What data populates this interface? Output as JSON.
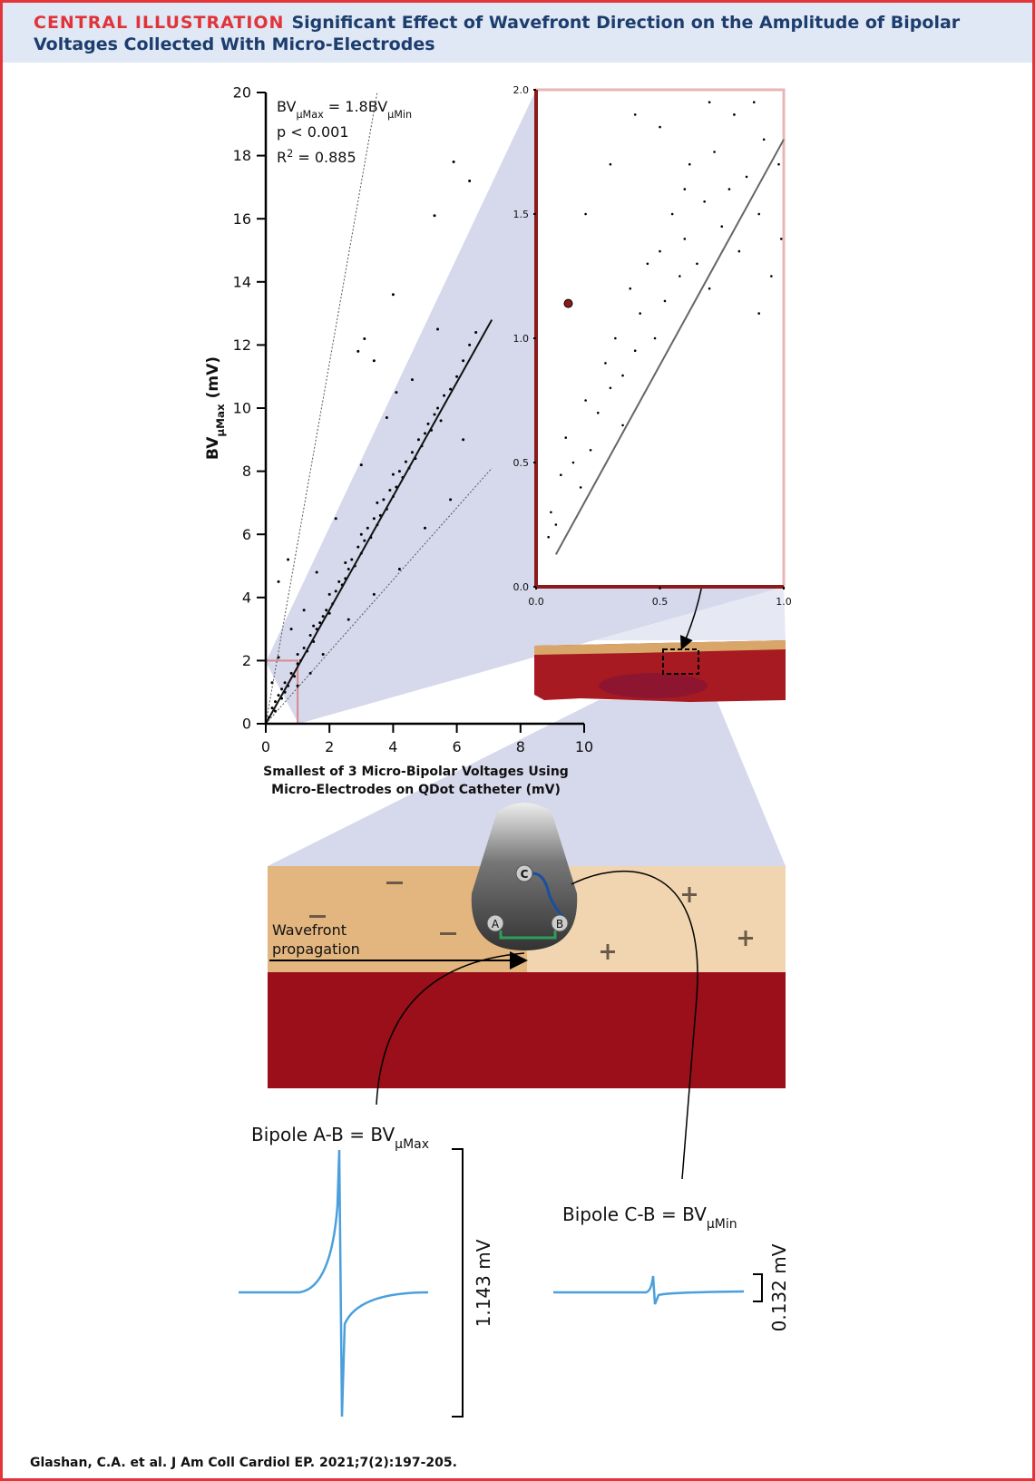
{
  "header": {
    "label": "CENTRAL ILLUSTRATION",
    "title": "Significant Effect of Wavefront Direction on the Amplitude of Bipolar Voltages Collected With Micro-Electrodes"
  },
  "chart_data": [
    {
      "type": "scatter",
      "ylabel": [
        {
          "text": "BV"
        },
        {
          "text": "μMax",
          "script": "sub"
        },
        {
          "text": " (mV)"
        }
      ],
      "xlabel": [
        "Smallest of 3 Micro-Bipolar Voltages Using",
        "Micro-Electrodes on QDot Catheter (mV)"
      ],
      "annotations": [
        [
          {
            "text": "BV"
          },
          {
            "text": "μMax",
            "script": "sub"
          },
          {
            "text": " = 1.8BV"
          },
          {
            "text": "μMin",
            "script": "sub"
          }
        ],
        [
          {
            "text": "p < 0.001"
          }
        ],
        [
          {
            "text": "R"
          },
          {
            "text": "2",
            "script": "sup"
          },
          {
            "text": " = 0.885"
          }
        ]
      ],
      "xlim": [
        0,
        10
      ],
      "ylim": [
        0,
        20
      ],
      "xticks": [
        0,
        2,
        4,
        6,
        8,
        10
      ],
      "yticks": [
        0,
        2,
        4,
        6,
        8,
        10,
        12,
        14,
        16,
        18,
        20
      ],
      "color": "#000000",
      "x": [
        0.1,
        0.2,
        0.3,
        0.3,
        0.4,
        0.5,
        0.5,
        0.6,
        0.7,
        0.8,
        0.9,
        1.0,
        1.0,
        1.1,
        1.2,
        1.3,
        1.4,
        1.5,
        1.5,
        1.6,
        1.7,
        1.8,
        1.9,
        2.0,
        2.0,
        2.1,
        2.2,
        2.3,
        2.4,
        2.5,
        2.5,
        2.6,
        2.7,
        2.8,
        2.9,
        3.0,
        3.0,
        3.1,
        3.2,
        3.3,
        3.4,
        3.5,
        3.5,
        3.6,
        3.7,
        3.8,
        3.9,
        4.0,
        4.0,
        4.1,
        4.2,
        4.3,
        4.4,
        4.5,
        4.6,
        4.7,
        4.8,
        4.9,
        5.0,
        5.1,
        5.2,
        5.3,
        5.4,
        5.5,
        5.6,
        5.8,
        6.0,
        6.2,
        6.4,
        6.6,
        0.2,
        0.4,
        0.6,
        0.8,
        1.0,
        1.2,
        1.4,
        1.6,
        1.8,
        2.2,
        2.6,
        3.0,
        3.4,
        3.8,
        4.2,
        4.6,
        5.0,
        5.4,
        5.8,
        6.2,
        2.9,
        3.1,
        3.4,
        4.0,
        4.1,
        5.3,
        5.9,
        6.4,
        0.4,
        0.7
      ],
      "y": [
        0.2,
        0.5,
        0.4,
        0.7,
        0.9,
        0.8,
        1.1,
        1.3,
        1.2,
        1.6,
        1.5,
        1.9,
        2.2,
        2.0,
        2.4,
        2.3,
        2.8,
        2.6,
        3.1,
        3.0,
        3.2,
        3.4,
        3.6,
        3.5,
        4.1,
        3.8,
        4.2,
        4.5,
        4.4,
        4.6,
        5.1,
        4.9,
        5.2,
        5.0,
        5.6,
        5.4,
        6.0,
        5.8,
        6.2,
        5.9,
        6.5,
        6.3,
        7.0,
        6.6,
        7.1,
        6.8,
        7.4,
        7.2,
        7.9,
        7.5,
        8.0,
        7.8,
        8.3,
        8.1,
        8.6,
        8.4,
        9.0,
        8.8,
        9.2,
        9.5,
        9.3,
        9.8,
        10.0,
        9.6,
        10.4,
        10.6,
        11.0,
        11.5,
        12.0,
        12.4,
        1.3,
        2.1,
        1.0,
        3.0,
        1.2,
        3.6,
        1.6,
        4.8,
        2.2,
        6.5,
        3.3,
        8.2,
        4.1,
        9.7,
        4.9,
        10.9,
        6.2,
        12.5,
        7.1,
        9.0,
        11.8,
        12.2,
        11.5,
        13.6,
        10.5,
        16.1,
        17.8,
        17.2,
        4.5,
        5.2
      ],
      "lines": [
        {
          "x": [
            0,
            7.1
          ],
          "y": [
            0,
            12.8
          ],
          "dash": false
        },
        {
          "x": [
            0,
            3.5
          ],
          "y": [
            0,
            20
          ],
          "dash": true
        },
        {
          "x": [
            0,
            7.1
          ],
          "y": [
            0,
            8.1
          ],
          "dash": true
        }
      ],
      "zoom_box": {
        "x": [
          0,
          1
        ],
        "y": [
          0,
          2
        ]
      }
    },
    {
      "type": "scatter",
      "xlim": [
        0,
        1
      ],
      "ylim": [
        0,
        2
      ],
      "xticks": [
        {
          "value": 0,
          "label": "0.0"
        },
        {
          "value": 0.5,
          "label": "0.5"
        },
        {
          "value": 1,
          "label": "1.0"
        }
      ],
      "yticks": [
        {
          "value": 0,
          "label": "0.0"
        },
        {
          "value": 0.5,
          "label": "0.5"
        },
        {
          "value": 1,
          "label": "1.0"
        },
        {
          "value": 1.5,
          "label": "1.5"
        },
        {
          "value": 2,
          "label": "2.0"
        }
      ],
      "color": "#000000",
      "x": [
        0.05,
        0.06,
        0.08,
        0.1,
        0.12,
        0.15,
        0.18,
        0.2,
        0.22,
        0.25,
        0.28,
        0.3,
        0.32,
        0.35,
        0.38,
        0.4,
        0.42,
        0.45,
        0.48,
        0.5,
        0.52,
        0.55,
        0.58,
        0.6,
        0.62,
        0.65,
        0.68,
        0.7,
        0.72,
        0.75,
        0.78,
        0.8,
        0.82,
        0.85,
        0.88,
        0.9,
        0.92,
        0.95,
        0.98,
        0.99,
        0.2,
        0.3,
        0.4,
        0.5,
        0.6,
        0.7,
        0.8,
        0.9,
        0.13,
        0.35
      ],
      "y": [
        0.2,
        0.3,
        0.25,
        0.45,
        0.6,
        0.5,
        0.4,
        0.75,
        0.55,
        0.7,
        0.9,
        0.8,
        1.0,
        0.85,
        1.2,
        0.95,
        1.1,
        1.3,
        1.0,
        1.35,
        1.15,
        1.5,
        1.25,
        1.4,
        1.7,
        1.3,
        1.55,
        1.2,
        1.75,
        1.45,
        1.6,
        1.9,
        1.35,
        1.65,
        1.95,
        1.5,
        1.8,
        1.25,
        1.7,
        1.4,
        1.5,
        1.7,
        1.9,
        1.85,
        1.6,
        1.95,
        1.9,
        1.1,
        1.14,
        0.65
      ],
      "lines": [
        {
          "x": [
            0.08,
            1.0
          ],
          "y": [
            0.13,
            1.8
          ],
          "dash": false
        }
      ],
      "highlight": {
        "x": 0.13,
        "y": 1.14,
        "color": "#8b1a1a"
      }
    }
  ],
  "diagram": {
    "electrodes": [
      "A",
      "B",
      "C"
    ],
    "wavefront": [
      "Wavefront",
      "propagation"
    ],
    "bipole_ab": [
      {
        "text": "Bipole A-B = BV"
      },
      {
        "text": "μMax",
        "script": "sub"
      }
    ],
    "bipole_cb": [
      {
        "text": "Bipole C-B = BV"
      },
      {
        "text": "μMin",
        "script": "sub"
      }
    ],
    "amp_ab": "1.143 mV",
    "amp_cb": "0.132 mV"
  },
  "citation": "Glashan, C.A. et al. J Am Coll Cardiol EP. 2021;7(2):197-205."
}
